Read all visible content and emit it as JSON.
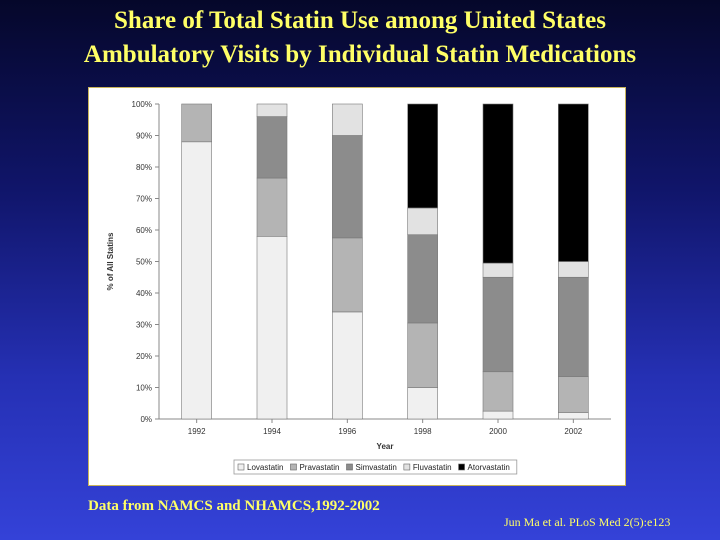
{
  "slide": {
    "title_line1": "Share of Total Statin Use among United States",
    "title_line2": "Ambulatory Visits by Individual Statin Medications",
    "source": "Data from NAMCS and NHAMCS,1992-2002",
    "citation": "Jun Ma et al. PLoS Med 2(5):e123"
  },
  "chart_data": {
    "type": "bar",
    "stacked": true,
    "title": "",
    "xlabel": "Year",
    "ylabel": "% of All Statins",
    "ylim": [
      0,
      100
    ],
    "yticks": [
      "0%",
      "10%",
      "20%",
      "30%",
      "40%",
      "50%",
      "60%",
      "70%",
      "80%",
      "90%",
      "100%"
    ],
    "categories": [
      "1992",
      "1994",
      "1996",
      "1998",
      "2000",
      "2002"
    ],
    "series": [
      {
        "name": "Lovastatin",
        "color": "#f0f0f0",
        "values": [
          88,
          58,
          34,
          10,
          2.5,
          2
        ]
      },
      {
        "name": "Pravastatin",
        "color": "#b4b4b4",
        "values": [
          12,
          18.5,
          23.5,
          20.5,
          12.5,
          11.5
        ]
      },
      {
        "name": "Simvastatin",
        "color": "#8c8c8c",
        "values": [
          0,
          19.5,
          32.5,
          28,
          30,
          31.5
        ]
      },
      {
        "name": "Fluvastatin",
        "color": "#e2e2e2",
        "values": [
          0,
          4,
          10,
          8.5,
          4.5,
          5
        ]
      },
      {
        "name": "Atorvastatin",
        "color": "#000000",
        "values": [
          0,
          0,
          0,
          33,
          50.5,
          50
        ]
      }
    ],
    "legend_position": "bottom",
    "grid": false
  }
}
